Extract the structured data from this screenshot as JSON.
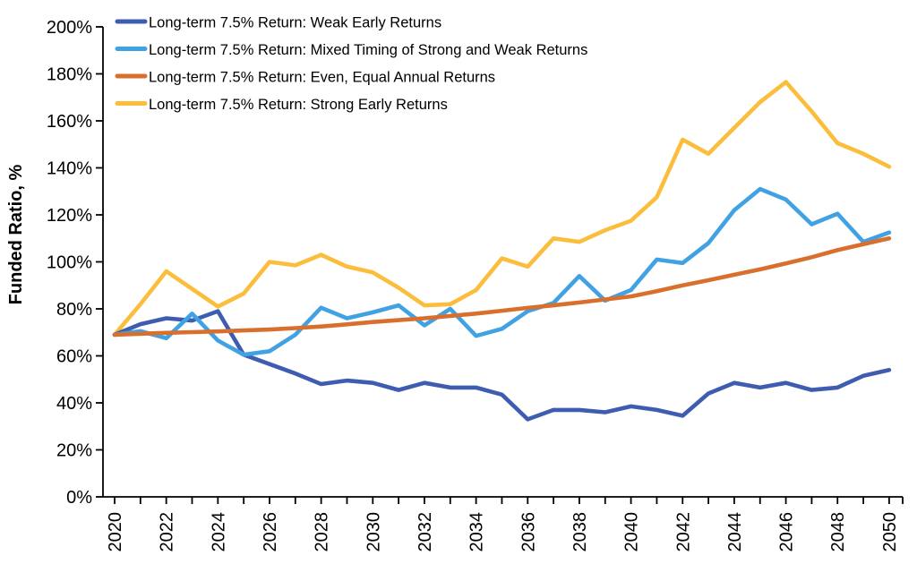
{
  "chart_data": {
    "type": "line",
    "title": "",
    "xlabel": "",
    "ylabel": "Funded Ratio, %",
    "ylim": [
      0,
      200
    ],
    "ytick_step": 20,
    "yticklabels": [
      "0%",
      "20%",
      "40%",
      "60%",
      "80%",
      "100%",
      "120%",
      "140%",
      "160%",
      "180%",
      "200%"
    ],
    "x": [
      2020,
      2021,
      2022,
      2023,
      2024,
      2025,
      2026,
      2027,
      2028,
      2029,
      2030,
      2031,
      2032,
      2033,
      2034,
      2035,
      2036,
      2037,
      2038,
      2039,
      2040,
      2041,
      2042,
      2043,
      2044,
      2045,
      2046,
      2047,
      2048,
      2049,
      2050
    ],
    "xticklabels": [
      "2020",
      "2022",
      "2024",
      "2026",
      "2028",
      "2030",
      "2032",
      "2034",
      "2036",
      "2038",
      "2040",
      "2042",
      "2044",
      "2046",
      "2048",
      "2050"
    ],
    "x_label_every": 2,
    "grid": "off",
    "legend_position": "top-left",
    "background": "#ffffff",
    "axis_color": "#000000",
    "series": [
      {
        "name": "Long-term 7.5% Return: Weak Early Returns",
        "color": "#3E5DB0",
        "values": [
          69,
          73.5,
          76,
          75,
          79,
          60.5,
          56.5,
          52.5,
          48,
          49.5,
          48.5,
          45.5,
          48.5,
          46.5,
          46.5,
          43.5,
          33,
          37,
          37,
          36,
          38.5,
          37,
          34.5,
          44,
          48.5,
          46.5,
          48.5,
          45.5,
          46.5,
          51.5,
          54
        ]
      },
      {
        "name": "Long-term 7.5% Return: Mixed Timing of Strong and Weak Returns",
        "color": "#41A2E3",
        "values": [
          69,
          70.5,
          67.5,
          78,
          66.5,
          60.5,
          62,
          69,
          80.5,
          76,
          78.5,
          81.5,
          73,
          80,
          68.5,
          71.5,
          79,
          82.5,
          94,
          83.5,
          88,
          101,
          99.5,
          108,
          122,
          131,
          126.5,
          116,
          120.5,
          108.5,
          112.5
        ]
      },
      {
        "name": "Long-term 7.5% Return: Even, Equal Annual Returns",
        "color": "#D96F2D",
        "values": [
          69,
          69.4,
          69.8,
          70.1,
          70.4,
          70.8,
          71.2,
          71.8,
          72.5,
          73.4,
          74.4,
          75.2,
          76,
          77,
          78,
          79.2,
          80.4,
          81.5,
          82.7,
          84,
          85.3,
          87.5,
          90,
          92.2,
          94.5,
          96.8,
          99.3,
          102,
          105,
          107.5,
          110
        ]
      },
      {
        "name": "Long-term 7.5% Return: Strong Early Returns",
        "color": "#FBBE3C",
        "values": [
          69,
          82,
          96,
          88.5,
          81,
          86.5,
          100,
          98.5,
          103,
          98,
          95.5,
          89,
          81.5,
          82,
          88,
          101.5,
          98,
          110,
          108.5,
          113.5,
          117.5,
          127.5,
          152,
          146,
          157,
          168,
          176.5,
          164,
          150.5,
          146,
          140.5
        ]
      }
    ],
    "draw_order": [
      3,
      0,
      1,
      2
    ]
  }
}
